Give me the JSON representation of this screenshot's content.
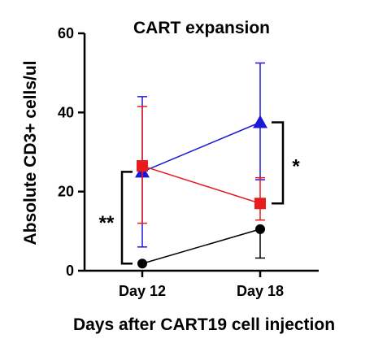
{
  "chart_data": {
    "type": "line",
    "title": "CART expansion",
    "xlabel": "Days after CART19 cell injection",
    "ylabel": "Absolute CD3+ cells/ul",
    "categories": [
      "Day 12",
      "Day 18"
    ],
    "ylim": [
      0,
      60
    ],
    "yticks": [
      "0",
      "20",
      "40",
      "60"
    ],
    "grid": false,
    "series": [
      {
        "color": "#1a1ad6",
        "marker": "triangle",
        "values": [
          25,
          37.5
        ],
        "err_low": [
          6,
          23
        ],
        "err_high": [
          44,
          52.5
        ]
      },
      {
        "color": "#e81c1c",
        "marker": "square",
        "values": [
          26.5,
          17
        ],
        "err_low": [
          12,
          12.8
        ],
        "err_high": [
          41.5,
          23.5
        ]
      },
      {
        "color": "#000000",
        "marker": "circle",
        "values": [
          1.8,
          10.5
        ],
        "err_low": [
          1.8,
          3.2
        ],
        "err_high": [
          1.8,
          10.5
        ]
      }
    ],
    "annotations": [
      {
        "text": "**",
        "category": "Day 12",
        "y_range": [
          1.8,
          25
        ]
      },
      {
        "text": "*",
        "category": "Day 18",
        "y_range": [
          17,
          37.5
        ]
      }
    ]
  }
}
